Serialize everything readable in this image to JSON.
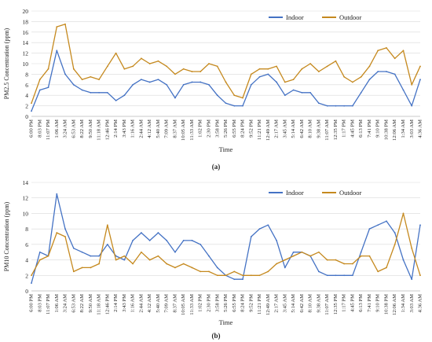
{
  "chart_data": [
    {
      "type": "line",
      "panel_label": "(a)",
      "xlabel": "Time",
      "ylabel": "PM2.5 Concentration (ppm)",
      "ylim": [
        0,
        20
      ],
      "yticks": [
        0,
        2,
        4,
        6,
        8,
        10,
        12,
        14,
        16,
        18,
        20
      ],
      "legend_position": "top-right",
      "categories": [
        "6:00 PM",
        "8:03 PM",
        "11:07 PM",
        "1:06 AM",
        "3:24 AM",
        "6:53 AM",
        "8:22 AM",
        "9:50 AM",
        "11:18 AM",
        "12:46 PM",
        "2:14 PM",
        "3:43 PM",
        "1:16 AM",
        "2:44 AM",
        "4:12 AM",
        "5:40 AM",
        "7:09 AM",
        "8:37 AM",
        "10:05 AM",
        "11:33 AM",
        "1:02 PM",
        "2:30 PM",
        "3:58 PM",
        "5:26 PM",
        "6:55 PM",
        "8:24 PM",
        "9:52 PM",
        "11:21 PM",
        "12:49 AM",
        "2:17 AM",
        "3:45 AM",
        "5:14 AM",
        "6:42 AM",
        "8:10 AM",
        "9:38 AM",
        "11:07 AM",
        "12:35 PM",
        "1:17 PM",
        "4:45 PM",
        "6:13 PM",
        "7:41 PM",
        "9:10 PM",
        "10:38 PM",
        "12:06 AM",
        "1:34 AM",
        "3:03 AM",
        "4:36 AM"
      ],
      "series": [
        {
          "name": "Indoor",
          "color": "#4472c4",
          "values": [
            1.0,
            5.0,
            5.5,
            12.5,
            8.0,
            6.0,
            5.0,
            4.5,
            4.5,
            4.5,
            3.0,
            4.0,
            6.0,
            7.0,
            6.5,
            7.0,
            6.0,
            3.5,
            6.0,
            6.5,
            6.5,
            6.0,
            4.0,
            2.5,
            2.0,
            2.0,
            6.0,
            7.5,
            8.0,
            6.5,
            4.0,
            5.0,
            4.5,
            4.5,
            2.5,
            2.0,
            2.0,
            2.0,
            2.0,
            4.5,
            7.0,
            8.5,
            8.5,
            8.0,
            5.0,
            2.0,
            7.0
          ]
        },
        {
          "name": "Outdoor",
          "color": "#c5891e",
          "values": [
            2.5,
            7.0,
            9.0,
            17.0,
            17.5,
            9.0,
            7.0,
            7.5,
            7.0,
            9.5,
            12.0,
            9.0,
            9.5,
            11.0,
            10.0,
            10.5,
            9.5,
            8.0,
            9.0,
            8.5,
            8.5,
            10.0,
            9.5,
            6.5,
            4.0,
            3.5,
            8.0,
            9.0,
            9.0,
            9.5,
            6.5,
            7.0,
            9.0,
            10.0,
            8.5,
            9.5,
            10.5,
            7.5,
            6.5,
            7.5,
            9.5,
            12.5,
            13.0,
            11.0,
            12.5,
            6.0,
            9.5
          ]
        }
      ]
    },
    {
      "type": "line",
      "panel_label": "(b)",
      "xlabel": "Time",
      "ylabel": "PM10 Concentration (ppm)",
      "ylim": [
        0,
        14
      ],
      "yticks": [
        0,
        2,
        4,
        6,
        8,
        10,
        12,
        14
      ],
      "legend_position": "top-right",
      "categories": [
        "6:00 PM",
        "8:03 PM",
        "11:07 PM",
        "1:06 AM",
        "3:24 AM",
        "6:53 AM",
        "8:22 AM",
        "9:50 AM",
        "11:18 AM",
        "12:46 PM",
        "2:14 PM",
        "3:43 PM",
        "1:16 AM",
        "2:44 AM",
        "4:12 AM",
        "5:40 AM",
        "7:09 AM",
        "8:37 AM",
        "10:05 AM",
        "11:33 AM",
        "1:02 PM",
        "2:30 PM",
        "3:58 PM",
        "5:26 PM",
        "6:55 PM",
        "8:24 PM",
        "9:52 PM",
        "11:21 PM",
        "12:49 AM",
        "2:17 AM",
        "3:45 AM",
        "5:14 AM",
        "6:42 AM",
        "8:10 AM",
        "9:38 AM",
        "11:07 AM",
        "12:35 PM",
        "1:17 PM",
        "4:45 PM",
        "6:13 PM",
        "7:41 PM",
        "9:10 PM",
        "10:38 PM",
        "12:06 AM",
        "1:34 AM",
        "3:03 AM",
        "4:36 AM"
      ],
      "series": [
        {
          "name": "Indoor",
          "color": "#4472c4",
          "values": [
            1.0,
            5.0,
            4.5,
            12.5,
            8.0,
            5.5,
            5.0,
            4.5,
            4.5,
            6.0,
            4.5,
            4.0,
            6.5,
            7.5,
            6.5,
            7.5,
            6.5,
            5.0,
            6.5,
            6.5,
            6.0,
            4.5,
            3.0,
            2.0,
            1.5,
            1.5,
            7.0,
            8.0,
            8.5,
            6.5,
            3.0,
            5.0,
            5.0,
            4.5,
            2.5,
            2.0,
            2.0,
            2.0,
            2.0,
            5.0,
            8.0,
            8.5,
            9.0,
            7.5,
            4.0,
            1.5,
            8.5
          ]
        },
        {
          "name": "Outdoor",
          "color": "#c5891e",
          "values": [
            2.0,
            4.0,
            4.5,
            7.5,
            7.0,
            2.5,
            3.0,
            3.0,
            3.5,
            8.5,
            4.0,
            4.5,
            3.5,
            5.0,
            4.0,
            4.5,
            3.5,
            3.0,
            3.5,
            3.0,
            2.5,
            2.5,
            2.0,
            2.0,
            2.5,
            2.0,
            2.0,
            2.0,
            2.5,
            3.5,
            4.0,
            4.5,
            5.0,
            4.5,
            5.0,
            4.0,
            4.0,
            3.5,
            3.5,
            4.5,
            4.5,
            2.5,
            3.0,
            6.0,
            10.0,
            5.5,
            2.0
          ]
        }
      ]
    }
  ]
}
